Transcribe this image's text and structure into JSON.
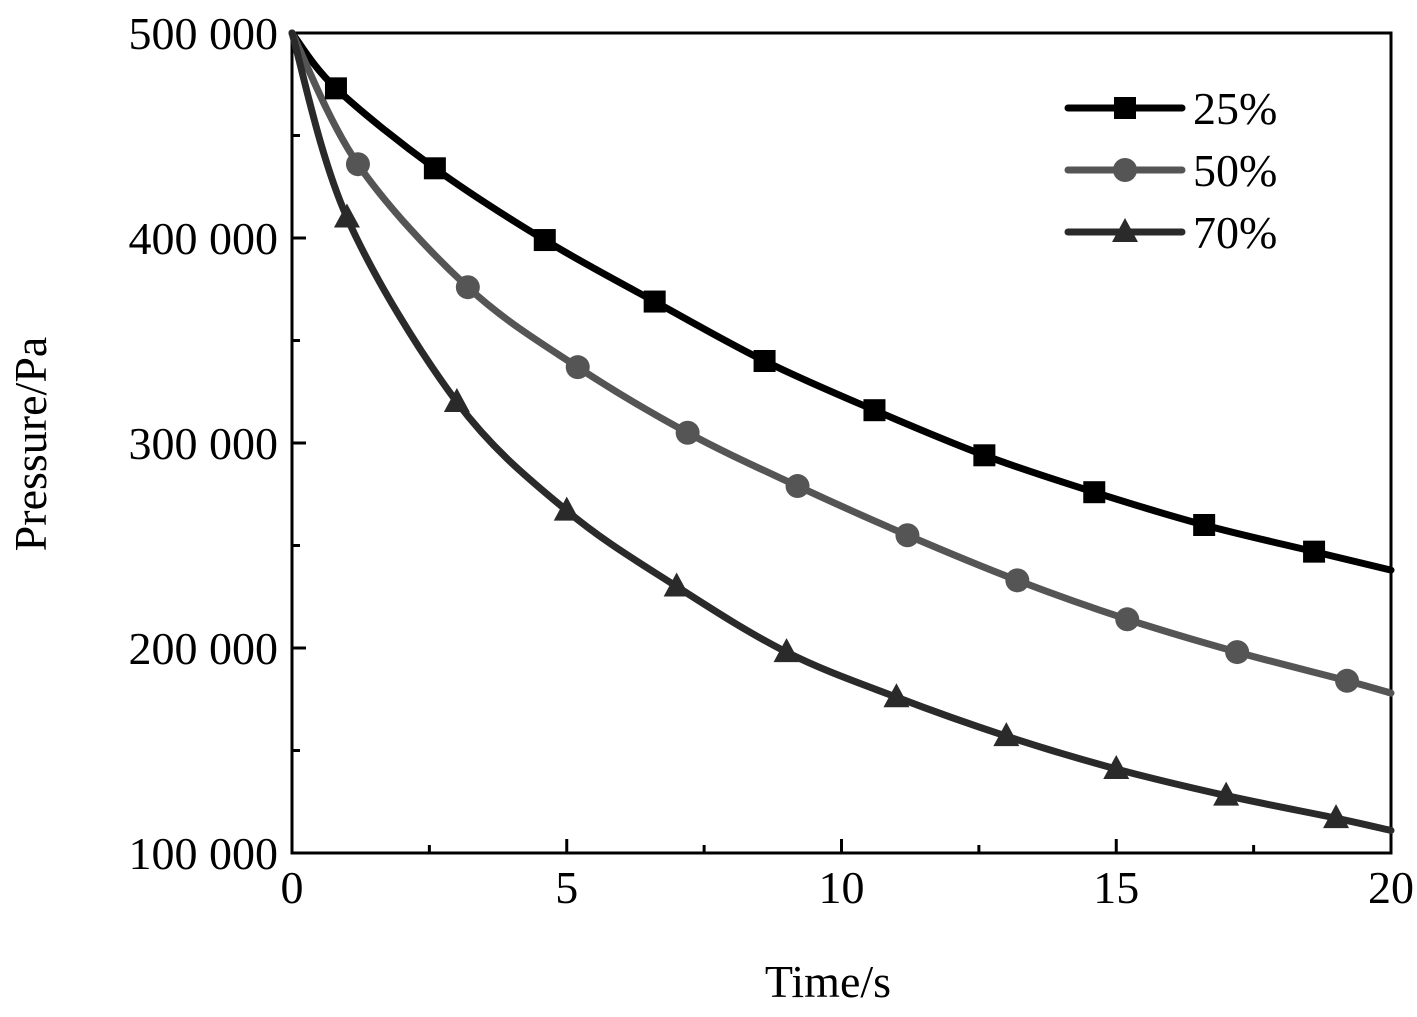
{
  "chart_data": {
    "type": "line",
    "title": "",
    "xlabel": "Time/s",
    "ylabel": "Pressure/Pa",
    "xlim": [
      0,
      20
    ],
    "ylim": [
      100000,
      500000
    ],
    "x_ticks": [
      0,
      5,
      10,
      15,
      20
    ],
    "x_tick_labels": [
      "0",
      "5",
      "10",
      "15",
      "20"
    ],
    "x_minor_ticks": [
      2.5,
      7.5,
      12.5,
      17.5
    ],
    "y_ticks": [
      100000,
      200000,
      300000,
      400000,
      500000
    ],
    "y_tick_labels": [
      "100 000",
      "200 000",
      "300 000",
      "400 000",
      "500 000"
    ],
    "y_minor_ticks": [
      150000,
      250000,
      350000,
      450000
    ],
    "grid": false,
    "legend_position": "top-right",
    "series": [
      {
        "name": "25%",
        "marker": "square",
        "color": "#000000",
        "x": [
          0,
          0.8,
          2.6,
          4.6,
          6.6,
          8.6,
          10.6,
          12.6,
          14.6,
          16.6,
          18.6,
          20
        ],
        "y": [
          500000,
          473000,
          434000,
          399000,
          369000,
          340000,
          316000,
          294000,
          276000,
          260000,
          247000,
          238000
        ]
      },
      {
        "name": "50%",
        "marker": "circle",
        "color": "#555555",
        "x": [
          0,
          1.2,
          3.2,
          5.2,
          7.2,
          9.2,
          11.2,
          13.2,
          15.2,
          17.2,
          19.2,
          20
        ],
        "y": [
          500000,
          436000,
          376000,
          337000,
          305000,
          279000,
          255000,
          233000,
          214000,
          198000,
          184000,
          178000
        ]
      },
      {
        "name": "70%",
        "marker": "triangle",
        "color": "#2a2a2a",
        "x": [
          0,
          1.0,
          3.0,
          5.0,
          7.0,
          9.0,
          11.0,
          13.0,
          15.0,
          17.0,
          19.0,
          20
        ],
        "y": [
          500000,
          410000,
          320000,
          267000,
          230000,
          198000,
          176000,
          157000,
          141000,
          128000,
          117000,
          111000
        ]
      }
    ]
  }
}
